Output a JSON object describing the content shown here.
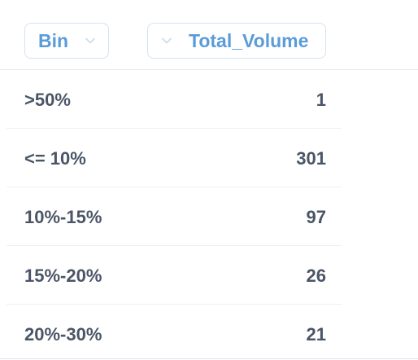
{
  "table": {
    "columns": [
      {
        "label": "Bin",
        "icon": "chevron-down-icon"
      },
      {
        "label": "Total_Volume",
        "icon": "chevron-down-icon"
      }
    ],
    "rows": [
      {
        "bin": ">50%",
        "total_volume": "1"
      },
      {
        "bin": "<= 10%",
        "total_volume": "301"
      },
      {
        "bin": "10%-15%",
        "total_volume": "97"
      },
      {
        "bin": "15%-20%",
        "total_volume": "26"
      },
      {
        "bin": "20%-30%",
        "total_volume": "21"
      }
    ]
  },
  "colors": {
    "header_text": "#5a9bd9",
    "header_border": "#d6e3f1",
    "cell_text": "#4b5567",
    "divider": "#eef0f3"
  }
}
